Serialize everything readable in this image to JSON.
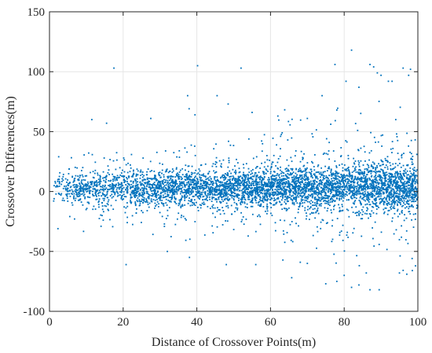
{
  "chart_data": {
    "type": "scatter",
    "title": "",
    "xlabel": "Distance of Crossover Points(m)",
    "ylabel": "Crossover Differences(m)",
    "xlim": [
      0,
      100
    ],
    "ylim": [
      -100,
      150
    ],
    "x_ticks": [
      0,
      20,
      40,
      60,
      80,
      100
    ],
    "y_ticks": [
      -100,
      -50,
      0,
      50,
      100,
      150
    ],
    "grid": true,
    "legend": "none",
    "marker_color": "#0072BD",
    "background_color": "#ffffff",
    "point_count_estimate": 5000,
    "spread_description": "Points concentrated around 0; band widens with distance",
    "outliers": [
      {
        "x": 17.5,
        "y": 103
      },
      {
        "x": 40.2,
        "y": 105
      },
      {
        "x": 52.0,
        "y": 103
      },
      {
        "x": 77.5,
        "y": 106
      },
      {
        "x": 82.0,
        "y": 118
      },
      {
        "x": 87.0,
        "y": 106
      },
      {
        "x": 88.0,
        "y": 104
      },
      {
        "x": 89.0,
        "y": 99
      },
      {
        "x": 90.0,
        "y": 97
      },
      {
        "x": 96.0,
        "y": 103
      },
      {
        "x": 98.0,
        "y": 102
      },
      {
        "x": 97.5,
        "y": 97
      },
      {
        "x": 37.5,
        "y": 80
      },
      {
        "x": 45.5,
        "y": 80
      },
      {
        "x": 48.5,
        "y": 73
      },
      {
        "x": 74.0,
        "y": 80
      },
      {
        "x": 80.5,
        "y": 92
      },
      {
        "x": 84.0,
        "y": 87
      },
      {
        "x": 92.0,
        "y": 92
      },
      {
        "x": 93.0,
        "y": 92
      },
      {
        "x": 11.5,
        "y": 60
      },
      {
        "x": 15.5,
        "y": 57
      },
      {
        "x": 27.5,
        "y": 61
      },
      {
        "x": 39.5,
        "y": 64
      },
      {
        "x": 55.0,
        "y": 66
      },
      {
        "x": 62.0,
        "y": 63
      },
      {
        "x": 70.0,
        "y": 61
      },
      {
        "x": 78.0,
        "y": 68
      },
      {
        "x": 94.0,
        "y": 60
      },
      {
        "x": 20.8,
        "y": -61
      },
      {
        "x": 38.0,
        "y": -55
      },
      {
        "x": 48.0,
        "y": -61
      },
      {
        "x": 56.0,
        "y": -61
      },
      {
        "x": 70.0,
        "y": -60
      },
      {
        "x": 75.0,
        "y": -77
      },
      {
        "x": 78.0,
        "y": -75
      },
      {
        "x": 80.0,
        "y": -70
      },
      {
        "x": 82.0,
        "y": -80
      },
      {
        "x": 84.0,
        "y": -78
      },
      {
        "x": 86.0,
        "y": -68
      },
      {
        "x": 87.0,
        "y": -82
      },
      {
        "x": 89.5,
        "y": -82
      },
      {
        "x": 95.0,
        "y": -68
      },
      {
        "x": 97.0,
        "y": -69
      },
      {
        "x": 98.5,
        "y": -66
      },
      {
        "x": 2.5,
        "y": 29
      },
      {
        "x": 2.3,
        "y": -31
      },
      {
        "x": 14.0,
        "y": -29
      },
      {
        "x": 32.0,
        "y": -50
      }
    ],
    "density_bands": [
      {
        "x_range": [
          1,
          10
        ],
        "sigma_core": 6,
        "sigma_wide": 12
      },
      {
        "x_range": [
          10,
          30
        ],
        "sigma_core": 7,
        "sigma_wide": 16
      },
      {
        "x_range": [
          30,
          60
        ],
        "sigma_core": 7,
        "sigma_wide": 20
      },
      {
        "x_range": [
          60,
          80
        ],
        "sigma_core": 8,
        "sigma_wide": 24
      },
      {
        "x_range": [
          80,
          100
        ],
        "sigma_core": 9,
        "sigma_wide": 28
      }
    ]
  }
}
